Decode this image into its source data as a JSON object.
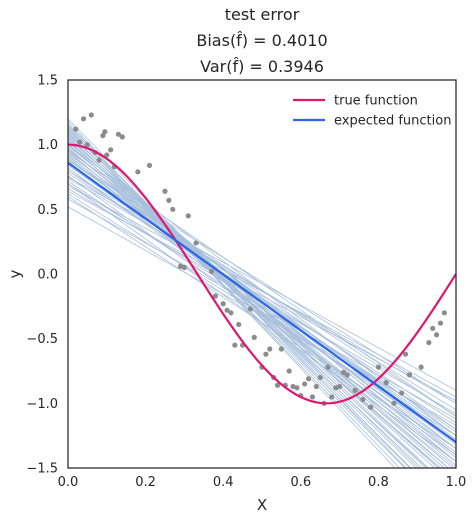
{
  "chart_data": {
    "type": "line",
    "title_lines": [
      "test error",
      "Bias(f̂) = 0.4010",
      "Var(f̂) = 0.3946"
    ],
    "xlabel": "X",
    "ylabel": "y",
    "xlim": [
      0.0,
      1.0
    ],
    "ylim": [
      -1.5,
      1.5
    ],
    "xticks": [
      0.0,
      0.2,
      0.4,
      0.6,
      0.8,
      1.0
    ],
    "xtick_labels": [
      "0.0",
      "0.2",
      "0.4",
      "0.6",
      "0.8",
      "1.0"
    ],
    "yticks": [
      1.5,
      1.0,
      0.5,
      0.0,
      -0.5,
      -1.0,
      -1.5
    ],
    "ytick_labels": [
      "1.5",
      "1.0",
      "0.5",
      "0.0",
      "−0.5",
      "−1.0",
      "−1.5"
    ],
    "grid": false,
    "legend_position": "top-right",
    "series": [
      {
        "name": "true function",
        "color": "#e0176f",
        "function": "cos(1.5*pi*x)",
        "x": [
          0.0,
          0.05,
          0.1,
          0.15,
          0.2,
          0.25,
          0.3,
          0.35,
          0.4,
          0.45,
          0.5,
          0.55,
          0.6,
          0.65,
          0.7,
          0.75,
          0.8,
          0.85,
          0.9,
          0.95,
          1.0
        ],
        "y": [
          1.0,
          0.972,
          0.891,
          0.76,
          0.588,
          0.383,
          0.156,
          -0.078,
          -0.309,
          -0.522,
          -0.707,
          -0.853,
          -0.951,
          -0.996,
          -0.988,
          -0.924,
          -0.809,
          -0.649,
          -0.454,
          -0.233,
          0.0
        ]
      },
      {
        "name": "expected function",
        "color": "#2a66e8",
        "x": [
          0.0,
          1.0
        ],
        "y": [
          0.86,
          -1.3
        ]
      }
    ],
    "fitted_lines": {
      "color": "#a9c0dc",
      "lines": [
        [
          0.52,
          -1.17
        ],
        [
          0.58,
          -1.12
        ],
        [
          0.62,
          -1.25
        ],
        [
          0.66,
          -1.08
        ],
        [
          0.7,
          -1.2
        ],
        [
          0.72,
          -1.3
        ],
        [
          0.74,
          -1.0
        ],
        [
          0.76,
          -1.4
        ],
        [
          0.78,
          -1.15
        ],
        [
          0.8,
          -1.22
        ],
        [
          0.82,
          -1.35
        ],
        [
          0.84,
          -1.25
        ],
        [
          0.85,
          -1.1
        ],
        [
          0.86,
          -1.3
        ],
        [
          0.87,
          -1.45
        ],
        [
          0.88,
          -1.2
        ],
        [
          0.89,
          -1.32
        ],
        [
          0.9,
          -1.38
        ],
        [
          0.91,
          -1.28
        ],
        [
          0.92,
          -1.5
        ],
        [
          0.93,
          -1.3
        ],
        [
          0.94,
          -1.42
        ],
        [
          0.95,
          -1.55
        ],
        [
          0.96,
          -1.35
        ],
        [
          0.97,
          -1.48
        ],
        [
          0.98,
          -1.6
        ],
        [
          0.99,
          -1.4
        ],
        [
          1.0,
          -1.52
        ],
        [
          1.01,
          -1.62
        ],
        [
          1.02,
          -1.45
        ],
        [
          1.03,
          -1.55
        ],
        [
          1.04,
          -1.7
        ],
        [
          1.05,
          -1.58
        ],
        [
          1.06,
          -1.65
        ],
        [
          1.07,
          -1.75
        ],
        [
          1.08,
          -1.62
        ],
        [
          1.09,
          -1.72
        ],
        [
          1.1,
          -1.85
        ],
        [
          1.11,
          -1.7
        ],
        [
          1.12,
          -1.8
        ],
        [
          1.13,
          -1.9
        ],
        [
          1.14,
          -1.78
        ],
        [
          1.15,
          -1.95
        ],
        [
          1.16,
          -1.85
        ],
        [
          1.18,
          -2.0
        ],
        [
          1.2,
          -1.9
        ],
        [
          0.68,
          -0.95
        ],
        [
          0.75,
          -0.9
        ],
        [
          0.8,
          -1.05
        ],
        [
          0.88,
          -1.0
        ],
        [
          0.95,
          -1.1
        ],
        [
          1.0,
          -1.25
        ],
        [
          0.6,
          -1.35
        ],
        [
          0.7,
          -1.45
        ],
        [
          0.64,
          -0.98
        ]
      ]
    },
    "scatter": {
      "color": "#8c8c8c",
      "x": [
        0.02,
        0.03,
        0.04,
        0.05,
        0.06,
        0.07,
        0.08,
        0.09,
        0.095,
        0.1,
        0.11,
        0.12,
        0.13,
        0.14,
        0.18,
        0.21,
        0.25,
        0.26,
        0.27,
        0.29,
        0.3,
        0.31,
        0.33,
        0.37,
        0.38,
        0.4,
        0.41,
        0.42,
        0.43,
        0.44,
        0.45,
        0.47,
        0.48,
        0.5,
        0.51,
        0.52,
        0.53,
        0.54,
        0.55,
        0.56,
        0.57,
        0.58,
        0.59,
        0.6,
        0.61,
        0.62,
        0.63,
        0.64,
        0.65,
        0.66,
        0.67,
        0.68,
        0.69,
        0.7,
        0.71,
        0.72,
        0.74,
        0.76,
        0.78,
        0.8,
        0.82,
        0.84,
        0.86,
        0.87,
        0.88,
        0.91,
        0.93,
        0.94,
        0.95,
        0.96,
        0.97
      ],
      "y": [
        1.12,
        1.02,
        1.2,
        1.0,
        1.23,
        0.94,
        0.88,
        1.07,
        1.1,
        0.92,
        0.96,
        0.83,
        1.08,
        1.06,
        0.79,
        0.84,
        0.64,
        0.57,
        0.5,
        0.06,
        0.05,
        0.45,
        0.24,
        0.02,
        -0.17,
        -0.23,
        -0.28,
        -0.3,
        -0.55,
        -0.39,
        -0.55,
        -0.27,
        -0.49,
        -0.72,
        -0.62,
        -0.58,
        -0.8,
        -0.86,
        -0.58,
        -0.86,
        -0.75,
        -0.87,
        -0.88,
        -0.94,
        -0.85,
        -0.81,
        -0.95,
        -0.87,
        -0.8,
        -1.0,
        -0.72,
        -0.95,
        -0.88,
        -0.87,
        -0.76,
        -0.78,
        -0.9,
        -0.97,
        -1.03,
        -0.72,
        -0.84,
        -1.0,
        -0.92,
        -0.62,
        -0.78,
        -0.72,
        -0.53,
        -0.42,
        -0.47,
        -0.38,
        -0.3
      ]
    }
  }
}
